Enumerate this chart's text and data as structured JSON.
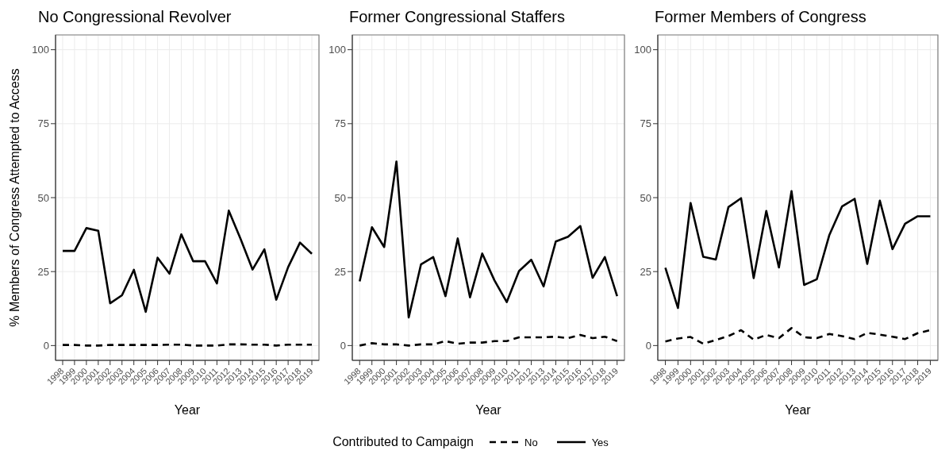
{
  "chart_data": [
    {
      "type": "line",
      "title": "No Congressional Revolver",
      "xlabel": "Year",
      "ylabel": "% Members of Congress Attempted to Access",
      "legend_title": "Contributed to Campaign",
      "legend": "bottom",
      "grid": true,
      "ylim": [
        -5,
        105
      ],
      "yticks": [
        0,
        25,
        50,
        75,
        100
      ],
      "categories": [
        "1998",
        "1999",
        "2000",
        "2001",
        "2002",
        "2003",
        "2004",
        "2005",
        "2006",
        "2007",
        "2008",
        "2009",
        "2010",
        "2011",
        "2012",
        "2013",
        "2014",
        "2015",
        "2016",
        "2017",
        "2018",
        "2019"
      ],
      "series": [
        {
          "name": "No",
          "color": "#000000",
          "line_style": "dashed",
          "values": [
            0.2,
            0.2,
            0,
            0,
            0.2,
            0.2,
            0.2,
            0.2,
            0.2,
            0.3,
            0.3,
            0,
            0,
            0,
            0.4,
            0.4,
            0.3,
            0.3,
            0,
            0.3,
            0.3,
            0.3
          ]
        },
        {
          "name": "Yes",
          "color": "#000000",
          "line_style": "solid",
          "values": [
            32,
            32,
            39.7,
            38.8,
            14.3,
            17,
            25.6,
            11.4,
            29.7,
            24.3,
            37.6,
            28.5,
            28.5,
            21,
            45.6,
            36,
            25.7,
            32.5,
            15.5,
            26.5,
            34.8,
            31
          ]
        }
      ]
    },
    {
      "type": "line",
      "title": "Former Congressional Staffers",
      "xlabel": "Year",
      "grid": true,
      "ylim": [
        -5,
        105
      ],
      "yticks": [
        0,
        25,
        50,
        75,
        100
      ],
      "categories": [
        "1998",
        "1999",
        "2000",
        "2001",
        "2002",
        "2003",
        "2004",
        "2005",
        "2006",
        "2007",
        "2008",
        "2009",
        "2010",
        "2011",
        "2012",
        "2013",
        "2014",
        "2015",
        "2016",
        "2017",
        "2018",
        "2019"
      ],
      "series": [
        {
          "color": "#000000",
          "line_style": "dashed",
          "values": [
            0,
            0.8,
            0.4,
            0.4,
            0,
            0.4,
            0.4,
            1.5,
            0.6,
            1,
            1,
            1.5,
            1.5,
            2.8,
            2.8,
            2.8,
            3,
            2.5,
            3.6,
            2.5,
            3,
            1.5
          ]
        },
        {
          "color": "#000000",
          "line_style": "solid",
          "values": [
            21.7,
            40,
            33.3,
            62.2,
            9.5,
            27.4,
            29.9,
            16.7,
            36.2,
            16.3,
            31.1,
            22,
            14.7,
            25.2,
            29,
            20,
            35.2,
            36.8,
            40.4,
            22.9,
            29.9,
            16.7
          ]
        }
      ]
    },
    {
      "type": "line",
      "title": "Former Members of Congress",
      "xlabel": "Year",
      "grid": true,
      "ylim": [
        -5,
        105
      ],
      "yticks": [
        0,
        25,
        50,
        75,
        100
      ],
      "categories": [
        "1998",
        "1999",
        "2000",
        "2001",
        "2002",
        "2003",
        "2004",
        "2005",
        "2006",
        "2007",
        "2008",
        "2009",
        "2010",
        "2011",
        "2012",
        "2013",
        "2014",
        "2015",
        "2016",
        "2017",
        "2018",
        "2019"
      ],
      "series": [
        {
          "color": "#000000",
          "line_style": "dashed",
          "values": [
            1.4,
            2.4,
            2.9,
            0.6,
            1.9,
            3.2,
            5.2,
            2,
            3.6,
            2.5,
            5.9,
            2.8,
            2.5,
            3.9,
            3.2,
            2.2,
            4.3,
            3.7,
            3,
            2.2,
            4.2,
            5.2
          ]
        },
        {
          "color": "#000000",
          "line_style": "solid",
          "values": [
            26.3,
            12.7,
            48.2,
            30,
            29.1,
            46.8,
            49.8,
            22.8,
            45.5,
            26.4,
            52.2,
            20.5,
            22.4,
            37.4,
            47,
            49.6,
            27.6,
            49,
            32.6,
            41.2,
            43.7,
            43.7
          ]
        }
      ]
    }
  ]
}
